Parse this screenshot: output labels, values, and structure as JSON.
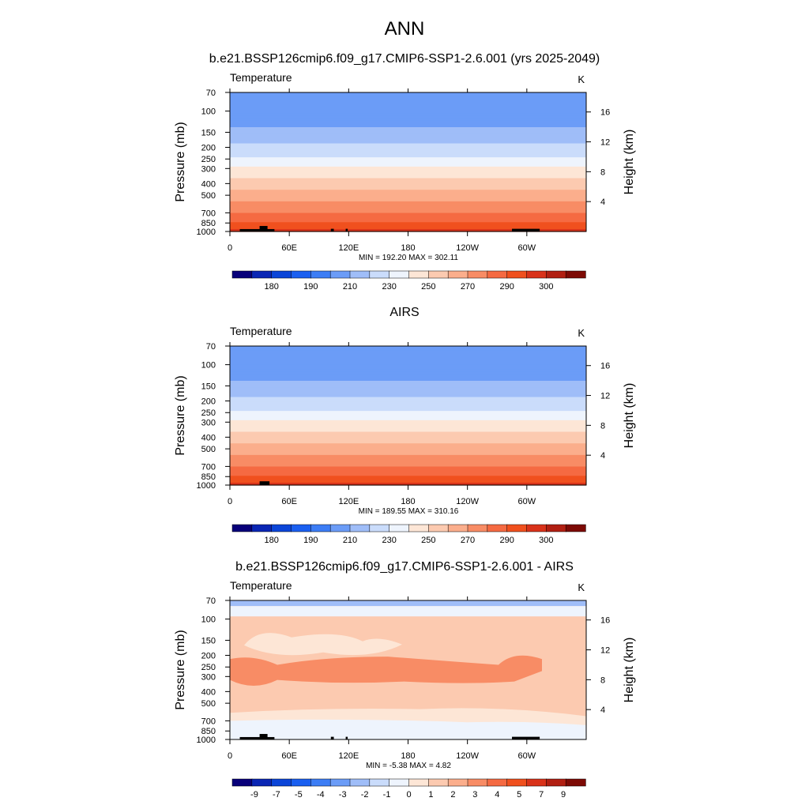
{
  "page": {
    "title": "ANN"
  },
  "chart_data": [
    {
      "type": "heatmap",
      "title": "b.e21.BSSP126cmip6.f09_g17.CMIP6-SSP1-2.6.001 (yrs 2025-2049)",
      "left_label": "Temperature",
      "units": "K",
      "xlabel": "",
      "ylabel": "Pressure (mb)",
      "ylabel_right": "Height (km)",
      "x_ticks": [
        "0",
        "60E",
        "120E",
        "180",
        "120W",
        "60W"
      ],
      "y_ticks": [
        "70",
        "100",
        "150",
        "200",
        "250",
        "300",
        "400",
        "500",
        "700",
        "850",
        "1000"
      ],
      "y_ticks_right": [
        "16",
        "12",
        "8",
        "4"
      ],
      "stats": "MIN = 192.20   MAX = 302.11",
      "colorbar_labels": [
        "180",
        "190",
        "210",
        "230",
        "250",
        "270",
        "290",
        "300"
      ],
      "contour_levels": [
        175,
        180,
        185,
        190,
        200,
        210,
        220,
        230,
        240,
        250,
        260,
        270,
        280,
        290,
        295,
        300
      ],
      "level_profile": [
        {
          "p": 70,
          "v": 205
        },
        {
          "p": 100,
          "v": 205
        },
        {
          "p": 150,
          "v": 212
        },
        {
          "p": 200,
          "v": 222
        },
        {
          "p": 250,
          "v": 232
        },
        {
          "p": 300,
          "v": 242
        },
        {
          "p": 400,
          "v": 255
        },
        {
          "p": 500,
          "v": 265
        },
        {
          "p": 700,
          "v": 280
        },
        {
          "p": 850,
          "v": 290
        },
        {
          "p": 1000,
          "v": 298
        }
      ]
    },
    {
      "type": "heatmap",
      "title": "AIRS",
      "left_label": "Temperature",
      "units": "K",
      "xlabel": "",
      "ylabel": "Pressure (mb)",
      "ylabel_right": "Height (km)",
      "x_ticks": [
        "0",
        "60E",
        "120E",
        "180",
        "120W",
        "60W"
      ],
      "y_ticks": [
        "70",
        "100",
        "150",
        "200",
        "250",
        "300",
        "400",
        "500",
        "700",
        "850",
        "1000"
      ],
      "y_ticks_right": [
        "16",
        "12",
        "8",
        "4"
      ],
      "stats": "MIN = 189.55   MAX = 310.16",
      "colorbar_labels": [
        "180",
        "190",
        "210",
        "230",
        "250",
        "270",
        "290",
        "300"
      ],
      "contour_levels": [
        175,
        180,
        185,
        190,
        200,
        210,
        220,
        230,
        240,
        250,
        260,
        270,
        280,
        290,
        295,
        300
      ],
      "level_profile": [
        {
          "p": 70,
          "v": 205
        },
        {
          "p": 100,
          "v": 205
        },
        {
          "p": 150,
          "v": 212
        },
        {
          "p": 200,
          "v": 222
        },
        {
          "p": 250,
          "v": 232
        },
        {
          "p": 300,
          "v": 242
        },
        {
          "p": 400,
          "v": 255
        },
        {
          "p": 500,
          "v": 265
        },
        {
          "p": 700,
          "v": 280
        },
        {
          "p": 850,
          "v": 290
        },
        {
          "p": 1000,
          "v": 298
        }
      ]
    },
    {
      "type": "heatmap",
      "title": "b.e21.BSSP126cmip6.f09_g17.CMIP6-SSP1-2.6.001 - AIRS",
      "left_label": "Temperature",
      "units": "K",
      "xlabel": "",
      "ylabel": "Pressure (mb)",
      "ylabel_right": "Height (km)",
      "x_ticks": [
        "0",
        "60E",
        "120E",
        "180",
        "120W",
        "60W"
      ],
      "y_ticks": [
        "70",
        "100",
        "150",
        "200",
        "250",
        "300",
        "400",
        "500",
        "700",
        "850",
        "1000"
      ],
      "y_ticks_right": [
        "16",
        "12",
        "8",
        "4"
      ],
      "stats": "MIN =  -5.38   MAX =   4.82",
      "colorbar_labels": [
        "-9",
        "-7",
        "-5",
        "-4",
        "-3",
        "-2",
        "-1",
        "0",
        "1",
        "2",
        "3",
        "4",
        "5",
        "7",
        "9"
      ],
      "contour_levels": [
        -9,
        -7,
        -5,
        -4,
        -3,
        -2,
        -1,
        0,
        1,
        2,
        3,
        4,
        5,
        7,
        9
      ]
    }
  ],
  "colors": {
    "diverging_palette": [
      "#08007a",
      "#0a26b4",
      "#0b45d8",
      "#1a5ff0",
      "#3c7df5",
      "#6b9cf7",
      "#9fbdf8",
      "#cadcfb",
      "#eef4fd",
      "#fde6d6",
      "#fccab0",
      "#fbae8c",
      "#f88c65",
      "#f56a42",
      "#f0501e",
      "#d9321a",
      "#b11f12",
      "#7d0a05"
    ],
    "land_mask": "#000000"
  }
}
